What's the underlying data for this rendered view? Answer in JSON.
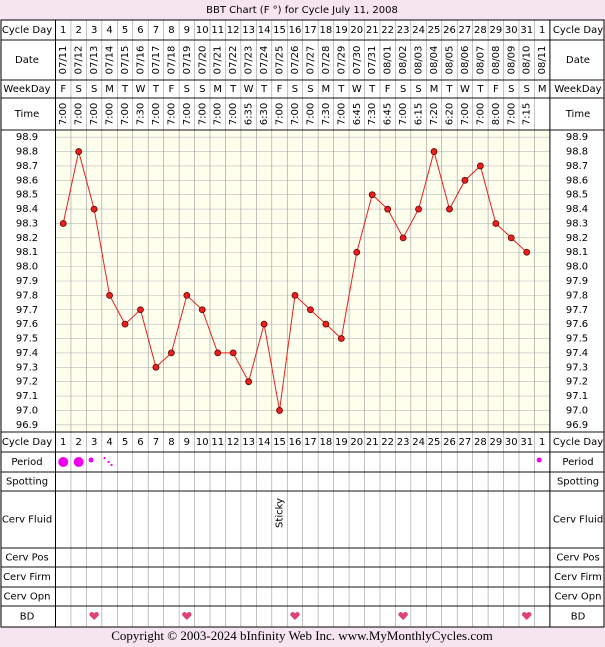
{
  "title": "BBT Chart (F °) for Cycle July 11, 2008",
  "row_labels": {
    "cycle_day": "Cycle Day",
    "date": "Date",
    "weekday": "WeekDay",
    "time": "Time",
    "period": "Period",
    "spotting": "Spotting",
    "cerv_fluid": "Cerv Fluid",
    "cerv_pos": "Cerv Pos",
    "cerv_firm": "Cerv Firm",
    "cerv_opn": "Cerv Opn",
    "bd": "BD"
  },
  "chart_data": {
    "type": "line",
    "cycle_days": [
      1,
      2,
      3,
      4,
      5,
      6,
      7,
      8,
      9,
      10,
      11,
      12,
      13,
      14,
      15,
      16,
      17,
      18,
      19,
      20,
      21,
      22,
      23,
      24,
      25,
      26,
      27,
      28,
      29,
      30,
      31,
      1
    ],
    "dates": [
      "07/11",
      "07/12",
      "07/13",
      "07/14",
      "07/15",
      "07/16",
      "07/17",
      "07/18",
      "07/19",
      "07/20",
      "07/21",
      "07/22",
      "07/23",
      "07/24",
      "07/25",
      "07/26",
      "07/27",
      "07/28",
      "07/29",
      "07/30",
      "07/31",
      "08/01",
      "08/02",
      "08/03",
      "08/04",
      "08/05",
      "08/06",
      "08/07",
      "08/08",
      "08/09",
      "08/10",
      "08/11"
    ],
    "weekdays": [
      "F",
      "S",
      "S",
      "M",
      "T",
      "W",
      "T",
      "F",
      "S",
      "S",
      "M",
      "T",
      "W",
      "T",
      "F",
      "S",
      "S",
      "M",
      "T",
      "W",
      "T",
      "F",
      "S",
      "S",
      "M",
      "T",
      "W",
      "T",
      "F",
      "S",
      "S",
      "M"
    ],
    "times": [
      "7:00",
      "7:00",
      "7:00",
      "7:00",
      "7:00",
      "7:30",
      "7:00",
      "7:00",
      "7:00",
      "7:00",
      "7:00",
      "7:00",
      "6:35",
      "6:30",
      "7:00",
      "7:00",
      "7:00",
      "7:30",
      "7:00",
      "6:45",
      "7:30",
      "6:45",
      "7:00",
      "6:15",
      "7:20",
      "6:20",
      "7:00",
      "7:00",
      "8:00",
      "7:00",
      "7:15",
      null
    ],
    "series": [
      {
        "color": "#e82020",
        "values": [
          98.3,
          98.8,
          98.4,
          97.8,
          97.6,
          97.7,
          97.3,
          97.4,
          97.8,
          97.7,
          97.4,
          97.4,
          97.2,
          97.6,
          97.0,
          97.8,
          97.7,
          97.6,
          97.5,
          98.1,
          98.5,
          98.4,
          98.2,
          98.4,
          98.8,
          98.4,
          98.6,
          98.7,
          98.3,
          98.2,
          98.1,
          null
        ]
      }
    ],
    "ylim": [
      96.85,
      98.95
    ],
    "yticks": [
      {
        "value": 98.9,
        "label": "98.9"
      },
      {
        "value": 98.8,
        "label": "98.8"
      },
      {
        "value": 98.7,
        "label": "98.7"
      },
      {
        "value": 98.6,
        "label": "98.6"
      },
      {
        "value": 98.5,
        "label": "98.5"
      },
      {
        "value": 98.4,
        "label": "98.4"
      },
      {
        "value": 98.3,
        "label": "98.3"
      },
      {
        "value": 98.2,
        "label": "98.2"
      },
      {
        "value": 98.1,
        "label": "98.1"
      },
      {
        "value": 98.0,
        "label": "98.0"
      },
      {
        "value": 97.9,
        "label": "97.9"
      },
      {
        "value": 97.8,
        "label": "97.8"
      },
      {
        "value": 97.7,
        "label": "97.7"
      },
      {
        "value": 97.6,
        "label": "97.6"
      },
      {
        "value": 97.5,
        "label": "97.5"
      },
      {
        "value": 97.4,
        "label": "97.4"
      },
      {
        "value": 97.3,
        "label": "97.3"
      },
      {
        "value": 97.2,
        "label": "97.2"
      },
      {
        "value": 97.1,
        "label": "97.1"
      },
      {
        "value": 97.0,
        "label": "97.0"
      },
      {
        "value": 96.9,
        "label": "96.9"
      }
    ],
    "grid": true,
    "period": [
      3,
      3,
      2,
      1,
      null,
      null,
      null,
      null,
      null,
      null,
      null,
      null,
      null,
      null,
      null,
      null,
      null,
      null,
      null,
      null,
      null,
      null,
      null,
      null,
      null,
      null,
      null,
      null,
      null,
      null,
      null,
      2
    ],
    "period_color": "#ee00ee",
    "cerv_fluid": [
      null,
      null,
      null,
      null,
      null,
      null,
      null,
      null,
      null,
      null,
      null,
      null,
      null,
      null,
      "Sticky",
      null,
      null,
      null,
      null,
      null,
      null,
      null,
      null,
      null,
      null,
      null,
      null,
      null,
      null,
      null,
      null,
      null
    ],
    "bd": [
      false,
      false,
      true,
      false,
      false,
      false,
      false,
      false,
      true,
      false,
      false,
      false,
      false,
      false,
      false,
      true,
      false,
      false,
      false,
      false,
      false,
      false,
      true,
      false,
      false,
      false,
      false,
      false,
      false,
      false,
      true,
      false
    ],
    "bd_color": "#e0407a"
  },
  "copyright": "Copyright © 2003-2024 bInfinity Web Inc.     www.MyMonthlyCycles.com"
}
